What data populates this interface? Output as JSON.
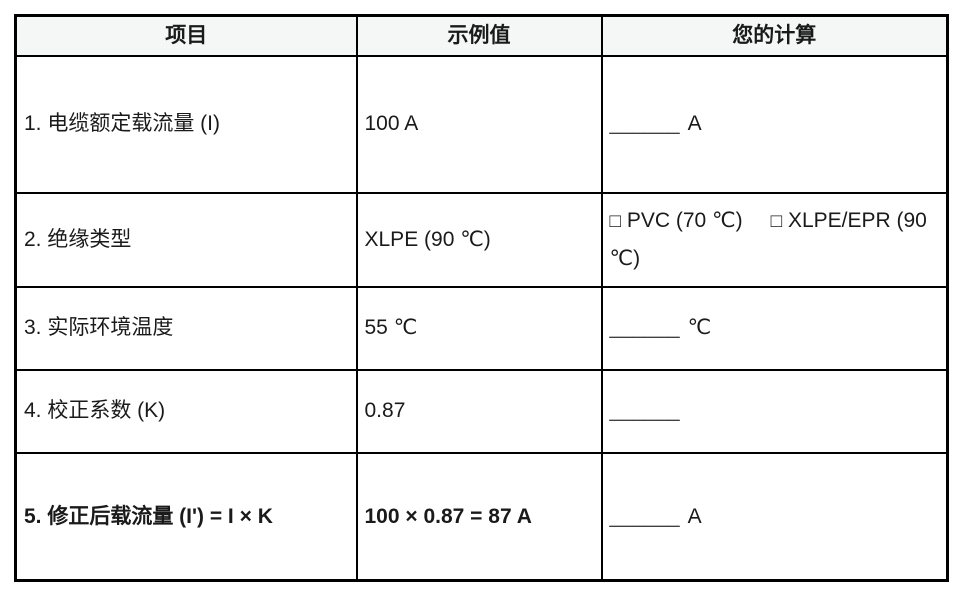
{
  "table": {
    "style": {
      "border_color": "#000000",
      "header_bg": "#f5f6f6",
      "text_color": "#1a1a1a"
    },
    "headers": [
      "项目",
      "示例值",
      "您的计算"
    ],
    "rows": [
      {
        "item": "1. 电缆额定载流量 (I)",
        "example": "100 A",
        "calc_blank": "______",
        "calc_unit": "A",
        "emphasis": false
      },
      {
        "item": "2. 绝缘类型",
        "example": "XLPE (90 ℃)",
        "calc_options": [
          {
            "box": "□",
            "label": "PVC (70 ℃)"
          },
          {
            "box": "□",
            "label": "XLPE/EPR (90 ℃)"
          }
        ],
        "emphasis": false
      },
      {
        "item": "3. 实际环境温度",
        "example": "55 ℃",
        "calc_blank": "______",
        "calc_unit": "℃",
        "emphasis": false
      },
      {
        "item": "4. 校正系数 (K)",
        "example": "0.87",
        "calc_blank": "______",
        "calc_unit": "",
        "emphasis": false
      },
      {
        "item": "5. 修正后载流量 (I') = I × K",
        "example": "100 × 0.87 = 87 A",
        "calc_blank": "______",
        "calc_unit": "A",
        "emphasis": true
      }
    ]
  }
}
